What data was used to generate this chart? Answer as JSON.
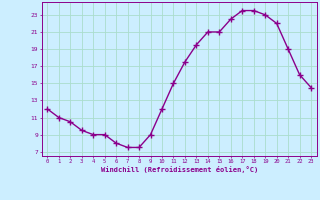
{
  "x_values": [
    0,
    1,
    2,
    3,
    4,
    5,
    6,
    7,
    8,
    9,
    10,
    11,
    12,
    13,
    14,
    15,
    16,
    17,
    18,
    19,
    20,
    21,
    22,
    23
  ],
  "y_values": [
    12.0,
    11.0,
    10.5,
    9.5,
    9.0,
    9.0,
    8.0,
    7.5,
    7.5,
    9.0,
    12.0,
    15.0,
    17.5,
    19.5,
    21.0,
    21.0,
    22.5,
    23.5,
    23.5,
    23.0,
    22.0,
    19.0,
    16.0,
    14.5
  ],
  "line_color": "#8B008B",
  "marker": "+",
  "marker_size": 4,
  "background_color": "#cceeff",
  "grid_color": "#aaddcc",
  "xlabel": "Windchill (Refroidissement éolien,°C)",
  "ylabel": "",
  "xlim": [
    -0.5,
    23.5
  ],
  "ylim": [
    6.5,
    24.5
  ],
  "yticks": [
    7,
    9,
    11,
    13,
    15,
    17,
    19,
    21,
    23
  ],
  "xticks": [
    0,
    1,
    2,
    3,
    4,
    5,
    6,
    7,
    8,
    9,
    10,
    11,
    12,
    13,
    14,
    15,
    16,
    17,
    18,
    19,
    20,
    21,
    22,
    23
  ],
  "tick_color": "#8B008B",
  "label_color": "#8B008B",
  "line_width": 1.0,
  "marker_color": "#8B008B"
}
